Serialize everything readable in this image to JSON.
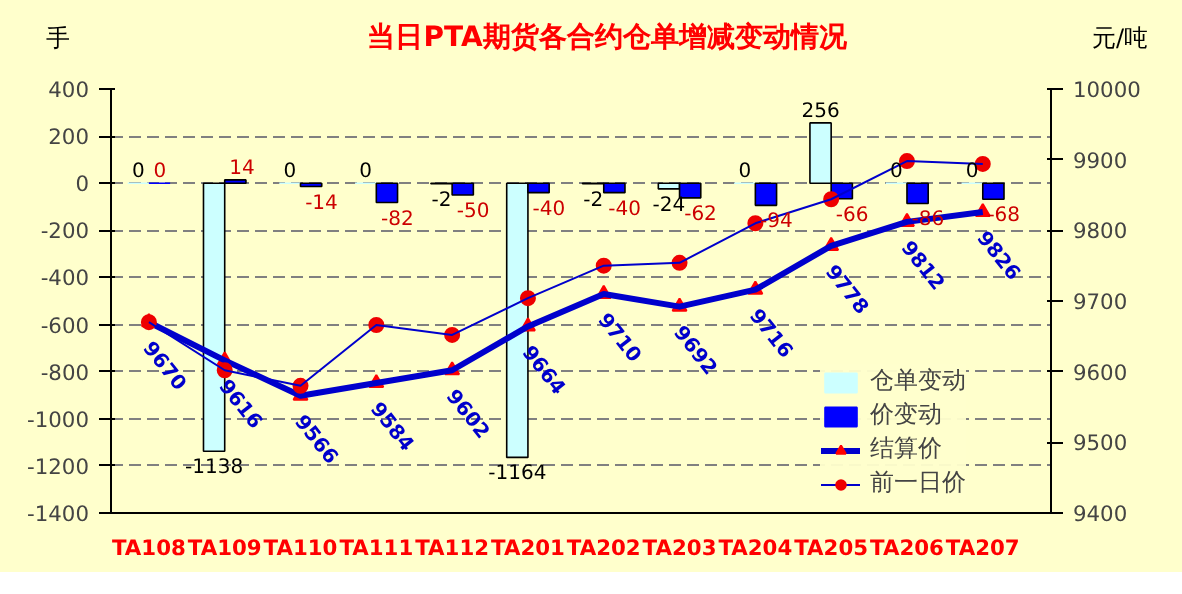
{
  "chart_data": {
    "type": "bar",
    "title": "当日PTA期货各合约仓单增减变动情况",
    "ylabel": "手",
    "y2label": "元/吨",
    "categories": [
      "TA108",
      "TA109",
      "TA110",
      "TA111",
      "TA112",
      "TA201",
      "TA202",
      "TA203",
      "TA204",
      "TA205",
      "TA206",
      "TA207"
    ],
    "series": [
      {
        "name": "仓单变动",
        "type": "bar",
        "color": "#ccffff",
        "values": [
          0,
          -1138,
          0,
          0,
          -2,
          -1164,
          -2,
          -24,
          0,
          256,
          0,
          0
        ],
        "value_labels": [
          "0",
          "-1138",
          "0",
          "0",
          "-2",
          "-1164",
          "-2",
          "-24",
          "0",
          "256",
          "0",
          "0"
        ]
      },
      {
        "name": "价变动",
        "type": "bar",
        "color": "#0000ff",
        "values": [
          0,
          14,
          -14,
          -82,
          -50,
          -40,
          -40,
          -62,
          -94,
          -66,
          -86,
          -68
        ],
        "value_labels": [
          "0",
          "14",
          "-14",
          "-82",
          "-50",
          "-40",
          "-40",
          "-62",
          "-94",
          "-66",
          "-86",
          "-68"
        ]
      },
      {
        "name": "结算价",
        "type": "line",
        "axis": "y2",
        "marker": "triangle",
        "color": "#0000cc",
        "values": [
          9670,
          9616,
          9566,
          9584,
          9602,
          9664,
          9710,
          9692,
          9716,
          9778,
          9812,
          9826
        ],
        "value_labels": [
          "9670",
          "9616",
          "9566",
          "9584",
          "9602",
          "9664",
          "9710",
          "9692",
          "9716",
          "9778",
          "9812",
          "9826"
        ]
      },
      {
        "name": "前一日价",
        "type": "line",
        "axis": "y2",
        "marker": "circle",
        "color": "#0000cc",
        "values": [
          9670,
          9602,
          9580,
          9666,
          9652,
          9704,
          9750,
          9754,
          9810,
          9844,
          9898,
          9894
        ]
      }
    ],
    "ylim": [
      -1400,
      400
    ],
    "yticks": [
      -1400,
      -1200,
      -1000,
      -800,
      -600,
      -400,
      -200,
      0,
      200,
      400
    ],
    "y2lim": [
      9400,
      10000
    ],
    "y2ticks": [
      9400,
      9500,
      9600,
      9700,
      9800,
      9900,
      10000
    ],
    "grid": "y",
    "legend": "right"
  }
}
